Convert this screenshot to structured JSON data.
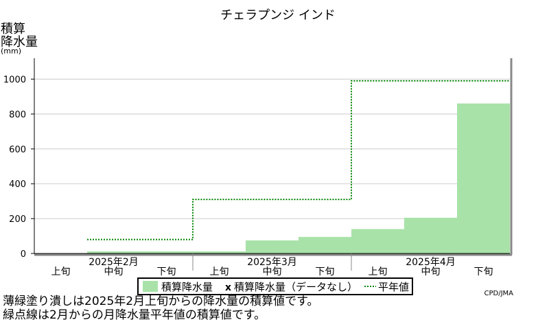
{
  "chart_data": {
    "type": "bar",
    "title": "チェラプンジ インド",
    "ylabel": [
      "積算",
      "降水量",
      "(mm)"
    ],
    "ylim": [
      0,
      1100
    ],
    "yticks": [
      0,
      200,
      400,
      600,
      800,
      1000
    ],
    "dekads": [
      "上旬",
      "中旬",
      "下旬",
      "上旬",
      "中旬",
      "下旬",
      "上旬",
      "中旬",
      "下旬"
    ],
    "months": [
      "2025年2月",
      "2025年3月",
      "2025年4月"
    ],
    "series": [
      {
        "name": "積算降水量",
        "kind": "bar",
        "color": "#a8e2a8",
        "values": [
          null,
          12,
          12,
          12,
          75,
          95,
          140,
          205,
          860
        ]
      },
      {
        "name": "平年値",
        "kind": "step-dotted",
        "color": "#008000",
        "values": [
          null,
          80,
          80,
          310,
          310,
          310,
          990,
          990,
          990
        ]
      }
    ],
    "legend": {
      "placement": "bottom",
      "items": [
        "積算降水量",
        "積算降水量（データなし）",
        "平年値"
      ],
      "nodata_marker": "x"
    },
    "credit": "CPD/JMA"
  },
  "notes": [
    "薄緑塗り潰しは2025年2月上旬からの降水量の積算値です。",
    "緑点線は2月からの月降水量平年値の積算値です。"
  ]
}
